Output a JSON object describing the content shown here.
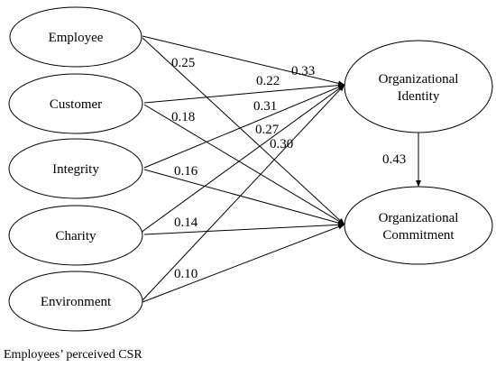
{
  "diagram": {
    "nodes": {
      "employee": "Employee",
      "customer": "Customer",
      "integrity": "Integrity",
      "charity": "Charity",
      "environment": "Environment",
      "org_identity_line1": "Organizational",
      "org_identity_line2": "Identity",
      "org_commitment_line1": "Organizational",
      "org_commitment_line2": "Commitment"
    },
    "coefficients": {
      "employee_to_identity": "0.33",
      "employee_to_commitment": "0.25",
      "customer_to_identity": "0.22",
      "customer_to_commitment": "0.18",
      "integrity_to_identity": "0.31",
      "integrity_to_commitment": "0.16",
      "charity_to_identity": "0.27",
      "charity_to_commitment": "0.14",
      "environment_to_identity": "0.30",
      "environment_to_commitment": "0.10",
      "identity_to_commitment": "0.43"
    },
    "caption": "Employees’ perceived CSR"
  }
}
